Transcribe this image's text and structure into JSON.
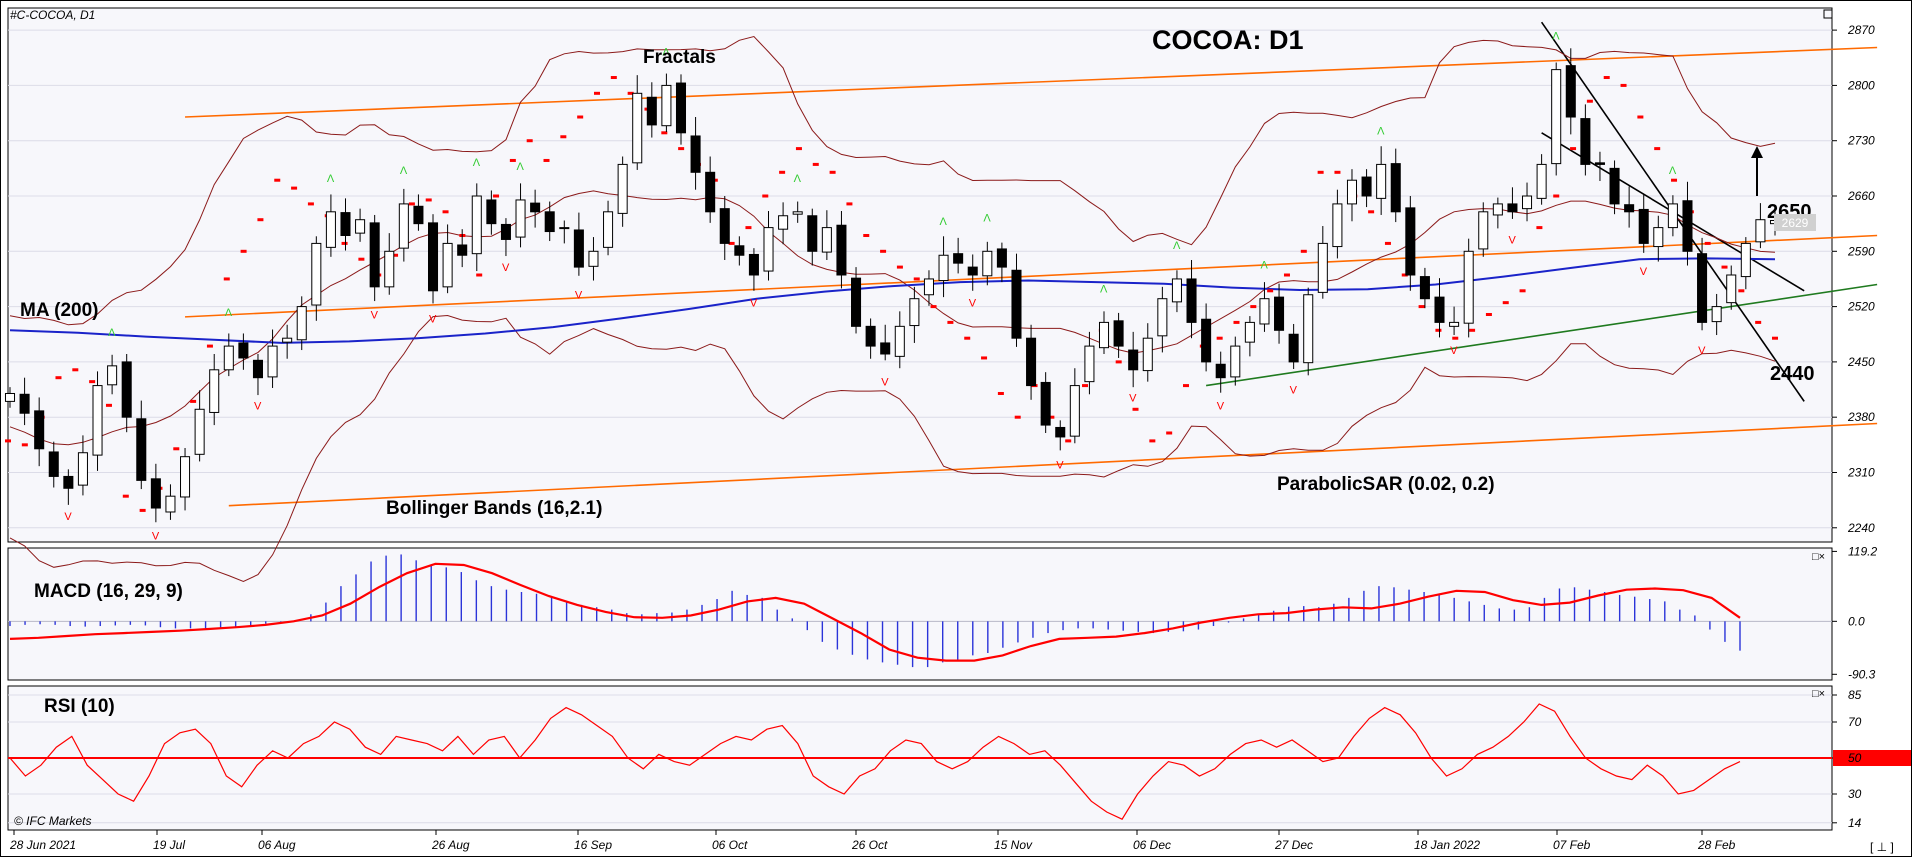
{
  "window": {
    "symbol_label": "#C-COCOA, D1"
  },
  "brand": {
    "copyright": "© IFC Markets"
  },
  "corner_marker": "[ ⊥ ]",
  "pane_controls": {
    "macd": "□×",
    "rsi": "□×"
  },
  "colors": {
    "bull": "#ffffff",
    "bear": "#000000",
    "ma": "#1a23c9",
    "bollinger": "#8b1a1a",
    "sar": "#ff0000",
    "fractal_up": "#33cc33",
    "fractal_down": "#ff0000",
    "channel": "#ff6a00",
    "support": "#1f7a1f",
    "down_channel": "#000000",
    "macd_hist": "#2b34d9",
    "macd_signal": "#ff0000",
    "rsi_line": "#ff0000",
    "rsi_level": "#ff0000"
  },
  "chart_data": [
    {
      "type": "candlestick",
      "title": "COCOA: D1",
      "y_ticks": [
        2870,
        2800,
        2730,
        2660,
        2590,
        2520,
        2450,
        2380,
        2310,
        2240
      ],
      "ylim": [
        2222,
        2898
      ],
      "x_ticks": [
        "28 Jun 2021",
        "19 Jul",
        "06 Aug",
        "26 Aug",
        "16 Sep",
        "06 Oct",
        "26 Oct",
        "15 Nov",
        "06 Dec",
        "27 Dec",
        "18 Jan 2022",
        "07 Feb",
        "28 Feb"
      ],
      "current_price": "2629",
      "annotations": {
        "ma": "MA (200)",
        "fractals": "Fractals",
        "bollinger": "Bollinger Bands (16,2.1)",
        "sar": "ParabolicSAR (0.02, 0.2)",
        "resistance_label": "2650",
        "support_label": "2440"
      },
      "levels": {
        "resistance": 2650,
        "support": 2440
      },
      "close_anchors": [
        2410,
        2385,
        2340,
        2305,
        2290,
        2335,
        2420,
        2445,
        2380,
        2300,
        2265,
        2280,
        2330,
        2390,
        2440,
        2470,
        2455,
        2430,
        2470,
        2480,
        2520,
        2600,
        2640,
        2610,
        2630,
        2545,
        2590,
        2650,
        2625,
        2540,
        2600,
        2585,
        2660,
        2625,
        2605,
        2655,
        2640,
        2615,
        2620,
        2570,
        2590,
        2640,
        2700,
        2790,
        2750,
        2800,
        2740,
        2690,
        2640,
        2600,
        2585,
        2560,
        2620,
        2635,
        2640,
        2590,
        2620,
        2560,
        2495,
        2470,
        2460,
        2495,
        2530,
        2555,
        2585,
        2575,
        2560,
        2590,
        2570,
        2480,
        2420,
        2370,
        2355,
        2420,
        2470,
        2500,
        2470,
        2440,
        2480,
        2530,
        2555,
        2500,
        2450,
        2430,
        2470,
        2500,
        2530,
        2490,
        2450,
        2535,
        2600,
        2650,
        2680,
        2660,
        2700,
        2640,
        2560,
        2530,
        2500,
        2500,
        2590,
        2640,
        2650,
        2640,
        2660,
        2700,
        2820,
        2760,
        2700,
        2700,
        2650,
        2640,
        2600,
        2620,
        2650,
        2590,
        2500,
        2520,
        2560,
        2600,
        2630,
        2629
      ],
      "ma200": [
        2490,
        2487,
        2482,
        2478,
        2474,
        2476,
        2480,
        2486,
        2494,
        2505,
        2517,
        2530,
        2539,
        2546,
        2551,
        2553,
        2551,
        2549,
        2544,
        2541,
        2542,
        2548,
        2558,
        2569,
        2580,
        2581,
        2580
      ],
      "parabolic_sar": [
        2350,
        2345,
        2380,
        2430,
        2440,
        2425,
        2395,
        2280,
        2262,
        2290,
        2340,
        2400,
        2470,
        2555,
        2590,
        2630,
        2680,
        2670,
        2650,
        2635,
        2600,
        2580,
        2560,
        2585,
        2650,
        2655,
        2640,
        2610,
        2560,
        2660,
        2705,
        2730,
        2705,
        2735,
        2760,
        2790,
        2810,
        2790,
        2770,
        2740,
        2720,
        2700,
        2680,
        2600,
        2620,
        2660,
        2690,
        2720,
        2700,
        2690,
        2650,
        2610,
        2590,
        2570,
        2555,
        2520,
        2500,
        2480,
        2455,
        2410,
        2380,
        2420,
        2380,
        2350,
        2420,
        2490,
        2450,
        2390,
        2350,
        2360,
        2420,
        2470,
        2480,
        2500,
        2520,
        2540,
        2560,
        2590,
        2690,
        2690,
        2660,
        2640,
        2600,
        2560,
        2520,
        2490,
        2480,
        2490,
        2510,
        2525,
        2540,
        2620,
        2660,
        2720,
        2780,
        2810,
        2800,
        2760,
        2720,
        2680,
        2640,
        2600,
        2570,
        2540,
        2500,
        2480
      ]
    },
    {
      "type": "bar+line",
      "title": "MACD (16, 29, 9)",
      "y_ticks": [
        119.2,
        0.0,
        -90.3
      ],
      "ylim": [
        -100,
        125
      ],
      "histogram": [
        -8,
        -6,
        -5,
        -6,
        -8,
        -9,
        -8,
        -7,
        -6,
        -7,
        -10,
        -12,
        -12,
        -12,
        -12,
        -10,
        -7,
        -4,
        -1,
        2,
        12,
        32,
        60,
        80,
        102,
        112,
        114,
        104,
        95,
        92,
        84,
        70,
        60,
        54,
        50,
        47,
        42,
        34,
        28,
        24,
        20,
        14,
        12,
        14,
        15,
        20,
        28,
        38,
        52,
        45,
        40,
        20,
        5,
        -15,
        -35,
        -48,
        -57,
        -65,
        -70,
        -74,
        -78,
        -78,
        -70,
        -65,
        -58,
        -54,
        -45,
        -36,
        -28,
        -20,
        -15,
        -12,
        -12,
        -14,
        -16,
        -18,
        -20,
        -18,
        -17,
        -14,
        -8,
        -2,
        5,
        12,
        18,
        25,
        26,
        24,
        30,
        40,
        52,
        60,
        58,
        54,
        50,
        46,
        40,
        34,
        28,
        22,
        20,
        24,
        40,
        56,
        58,
        54,
        50,
        45,
        42,
        38,
        34,
        20,
        10,
        -14,
        -35,
        -50
      ],
      "signal": [
        -30,
        -28,
        -25,
        -22,
        -20,
        -18,
        -16,
        -13,
        -10,
        -6,
        0,
        10,
        30,
        58,
        82,
        98,
        96,
        82,
        62,
        43,
        28,
        16,
        7,
        6,
        10,
        20,
        34,
        40,
        30,
        5,
        -20,
        -48,
        -62,
        -67,
        -67,
        -58,
        -42,
        -30,
        -28,
        -26,
        -20,
        -12,
        -2,
        6,
        12,
        14,
        20,
        24,
        22,
        30,
        42,
        52,
        50,
        36,
        28,
        32,
        44,
        54,
        56,
        53,
        40,
        6
      ]
    },
    {
      "type": "line",
      "title": "RSI (10)",
      "y_ticks": [
        85,
        70,
        50,
        30,
        14
      ],
      "ylim": [
        10,
        90
      ],
      "level": 50,
      "values": [
        50,
        40,
        46,
        56,
        62,
        46,
        38,
        30,
        26,
        40,
        58,
        64,
        66,
        58,
        40,
        34,
        46,
        54,
        50,
        58,
        62,
        70,
        66,
        56,
        52,
        62,
        60,
        58,
        54,
        62,
        52,
        60,
        62,
        50,
        60,
        72,
        78,
        74,
        68,
        62,
        50,
        44,
        52,
        48,
        46,
        52,
        58,
        62,
        60,
        66,
        68,
        58,
        40,
        34,
        30,
        40,
        44,
        54,
        60,
        58,
        48,
        44,
        48,
        56,
        62,
        58,
        52,
        54,
        46,
        36,
        26,
        20,
        16,
        30,
        40,
        48,
        46,
        40,
        44,
        52,
        58,
        60,
        56,
        60,
        54,
        48,
        50,
        62,
        72,
        78,
        74,
        64,
        50,
        40,
        44,
        52,
        56,
        62,
        70,
        80,
        76,
        62,
        50,
        44,
        40,
        38,
        46,
        40,
        30,
        32,
        38,
        44,
        48
      ]
    }
  ]
}
